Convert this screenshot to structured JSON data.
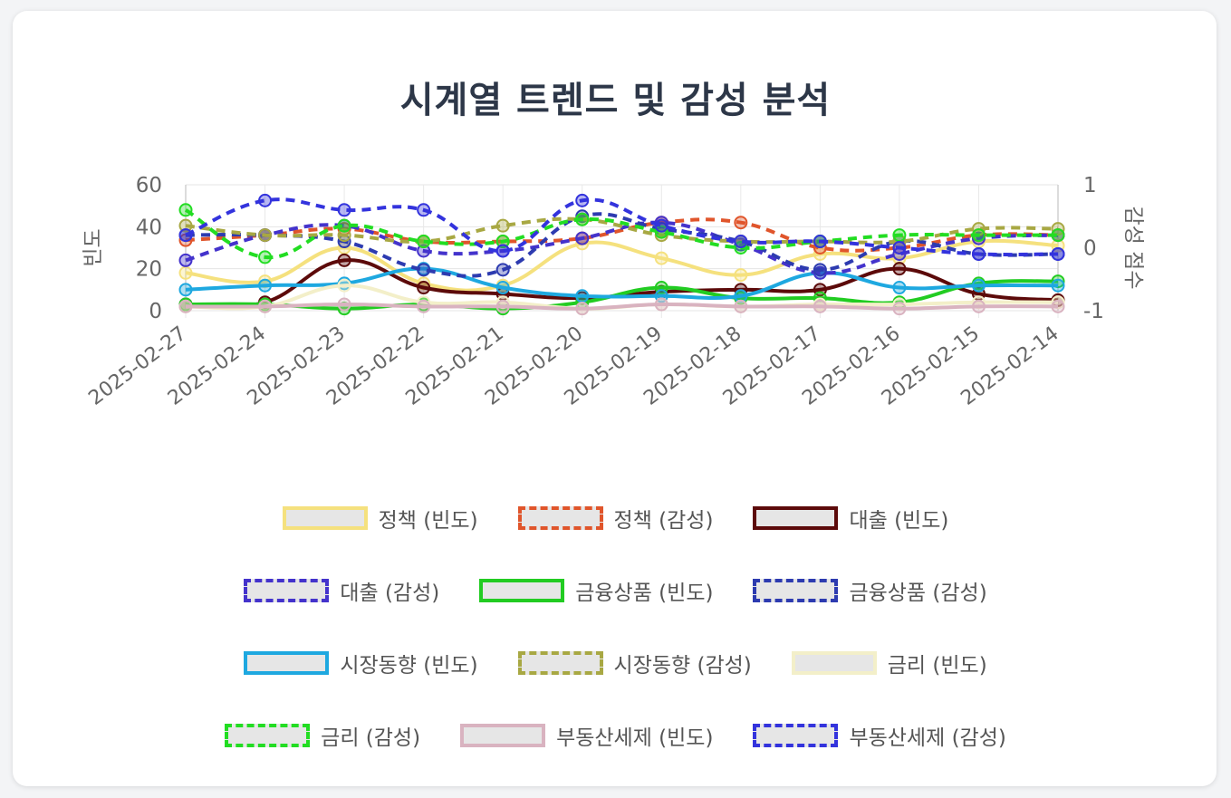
{
  "chart_data": {
    "type": "line",
    "title": "시계열 트렌드 및 감성 분석",
    "ylabel": "빈도",
    "y2label": "감성 점수",
    "ylim": [
      0,
      60
    ],
    "y2lim": [
      -1,
      1
    ],
    "yticks": [
      "0",
      "20",
      "40",
      "60"
    ],
    "y2ticks": [
      "-1",
      "0",
      "1"
    ],
    "categories": [
      "2025-02-27",
      "2025-02-24",
      "2025-02-23",
      "2025-02-22",
      "2025-02-21",
      "2025-02-20",
      "2025-02-19",
      "2025-02-18",
      "2025-02-17",
      "2025-02-16",
      "2025-02-15",
      "2025-02-14"
    ],
    "grid": true,
    "legend_position": "bottom",
    "series": [
      {
        "name": "정책 (빈도)",
        "axis": "y",
        "color": "#f5e17e",
        "dashed": false,
        "values": [
          18,
          14,
          30,
          13,
          12,
          32,
          25,
          17,
          27,
          25,
          33,
          31
        ]
      },
      {
        "name": "정책 (감성)",
        "axis": "y2",
        "color": "#e0552b",
        "dashed": true,
        "values": [
          0.12,
          0.2,
          0.3,
          0.1,
          0.1,
          0.15,
          0.4,
          0.4,
          0.0,
          0.0,
          0.2,
          0.2
        ]
      },
      {
        "name": "대출 (빈도)",
        "axis": "y",
        "color": "#5c0a0a",
        "dashed": false,
        "values": [
          3,
          4,
          24,
          11,
          8,
          6,
          9,
          10,
          10,
          20,
          8,
          5
        ]
      },
      {
        "name": "대출 (감성)",
        "axis": "y2",
        "color": "#4433cc",
        "dashed": true,
        "values": [
          -0.2,
          0.2,
          0.35,
          -0.05,
          -0.05,
          0.15,
          0.4,
          0.05,
          -0.4,
          -0.1,
          0.15,
          0.2
        ]
      },
      {
        "name": "금융상품 (빈도)",
        "axis": "y",
        "color": "#22cc22",
        "dashed": false,
        "values": [
          3,
          3,
          1,
          3,
          1,
          4,
          11,
          6,
          6,
          4,
          13,
          14
        ]
      },
      {
        "name": "금융상품 (감성)",
        "axis": "y2",
        "color": "#2d3bb0",
        "dashed": true,
        "values": [
          0.2,
          0.2,
          0.1,
          -0.35,
          -0.35,
          0.5,
          0.3,
          0.1,
          -0.35,
          0.1,
          -0.1,
          -0.1
        ]
      },
      {
        "name": "시장동향 (빈도)",
        "axis": "y",
        "color": "#1ea8e0",
        "dashed": false,
        "values": [
          10,
          12,
          13,
          20,
          11,
          7,
          7,
          7,
          18,
          11,
          12,
          12
        ]
      },
      {
        "name": "시장동향 (감성)",
        "axis": "y2",
        "color": "#a8a843",
        "dashed": true,
        "values": [
          0.35,
          0.2,
          0.2,
          0.1,
          0.35,
          0.45,
          0.2,
          0.1,
          0.1,
          0.1,
          0.3,
          0.3
        ]
      },
      {
        "name": "금리 (빈도)",
        "axis": "y",
        "color": "#f3efc9",
        "dashed": false,
        "values": [
          2,
          2,
          12,
          4,
          4,
          1,
          3,
          2,
          3,
          3,
          4,
          4
        ]
      },
      {
        "name": "금리 (감성)",
        "axis": "y2",
        "color": "#22dd22",
        "dashed": true,
        "values": [
          0.6,
          -0.15,
          0.35,
          0.1,
          0.1,
          0.45,
          0.25,
          0.0,
          0.1,
          0.2,
          0.2,
          0.2
        ]
      },
      {
        "name": "부동산세제 (빈도)",
        "axis": "y",
        "color": "#d9b3c0",
        "dashed": false,
        "values": [
          2,
          2,
          3,
          2,
          2,
          1,
          3,
          2,
          2,
          1,
          2,
          2
        ]
      },
      {
        "name": "부동산세제 (감성)",
        "axis": "y2",
        "color": "#3333dd",
        "dashed": true,
        "values": [
          0.2,
          0.75,
          0.6,
          0.6,
          -0.05,
          0.75,
          0.35,
          0.1,
          0.1,
          0.0,
          -0.1,
          -0.1
        ]
      }
    ]
  }
}
